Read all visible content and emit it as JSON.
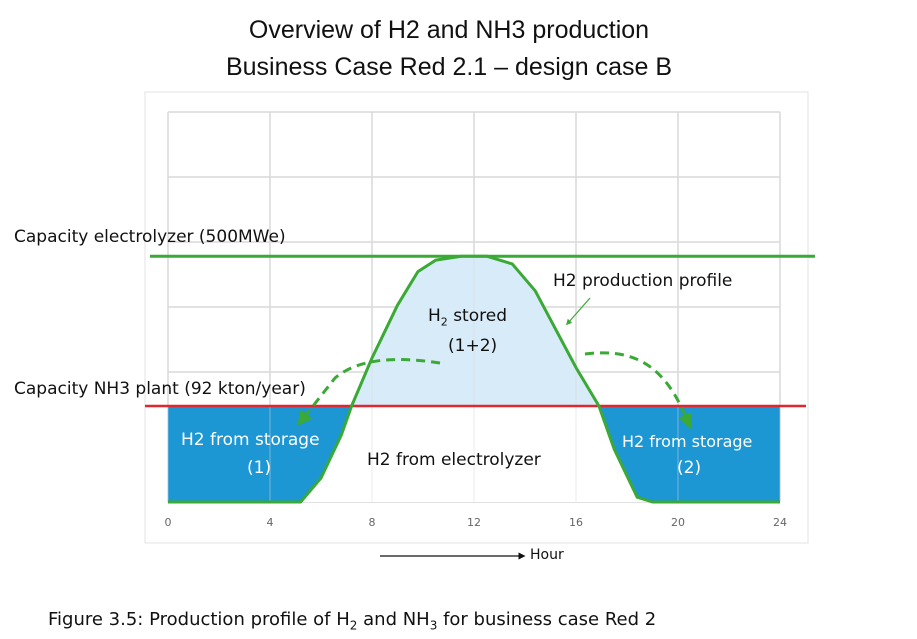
{
  "title_line1": "Overview of H2 and NH3 production",
  "title_line2": "Business Case Red 2.1 – design case B",
  "labels": {
    "electrolyzer_capacity": "Capacity electrolyzer (500MWe)",
    "nh3_capacity": "Capacity NH3 plant (92 kton/year)",
    "profile": "H2 production profile",
    "stored_h": "H",
    "stored_sub": "2",
    "stored_rest": " stored",
    "stored_2": "(1+2)",
    "storage1_a": "H2 from storage",
    "storage1_b": "(1)",
    "storage2_a": "H2 from storage",
    "storage2_b": "(2)",
    "electrolyzer": "H2 from electrolyzer",
    "xlabel": "Hour"
  },
  "caption": {
    "a": "Figure 3.5: Production profile of H",
    "sub1": "2",
    "b": " and NH",
    "sub2": "3",
    "c": " for business case Red 2"
  },
  "colors": {
    "profile": "#3aa935",
    "nh3_line": "#e0262f",
    "storage_fill": "#1d96d4",
    "stored_fill": "#d8ebf8",
    "grid": "#d9d9d9"
  },
  "chart_data": {
    "type": "area",
    "xlabel": "Hour",
    "xlim": [
      0,
      24
    ],
    "xticks": [
      "0",
      "4",
      "8",
      "12",
      "16",
      "20",
      "24"
    ],
    "level_units": "relative to NH3 plant capacity",
    "nh3_capacity_level": 1.0,
    "electrolyzer_capacity_level": 2.56,
    "profile": {
      "x": [
        0,
        5.2,
        6,
        6.8,
        7.2,
        8,
        9,
        9.8,
        10.5,
        11.5,
        12.5,
        13.5,
        14.4,
        15.2,
        16,
        16.9,
        17.5,
        18.4,
        19,
        24
      ],
      "y": [
        0,
        0,
        0.25,
        0.7,
        1.0,
        1.5,
        2.05,
        2.4,
        2.52,
        2.56,
        2.56,
        2.48,
        2.2,
        1.8,
        1.4,
        1.0,
        0.55,
        0.05,
        0,
        0
      ]
    }
  }
}
